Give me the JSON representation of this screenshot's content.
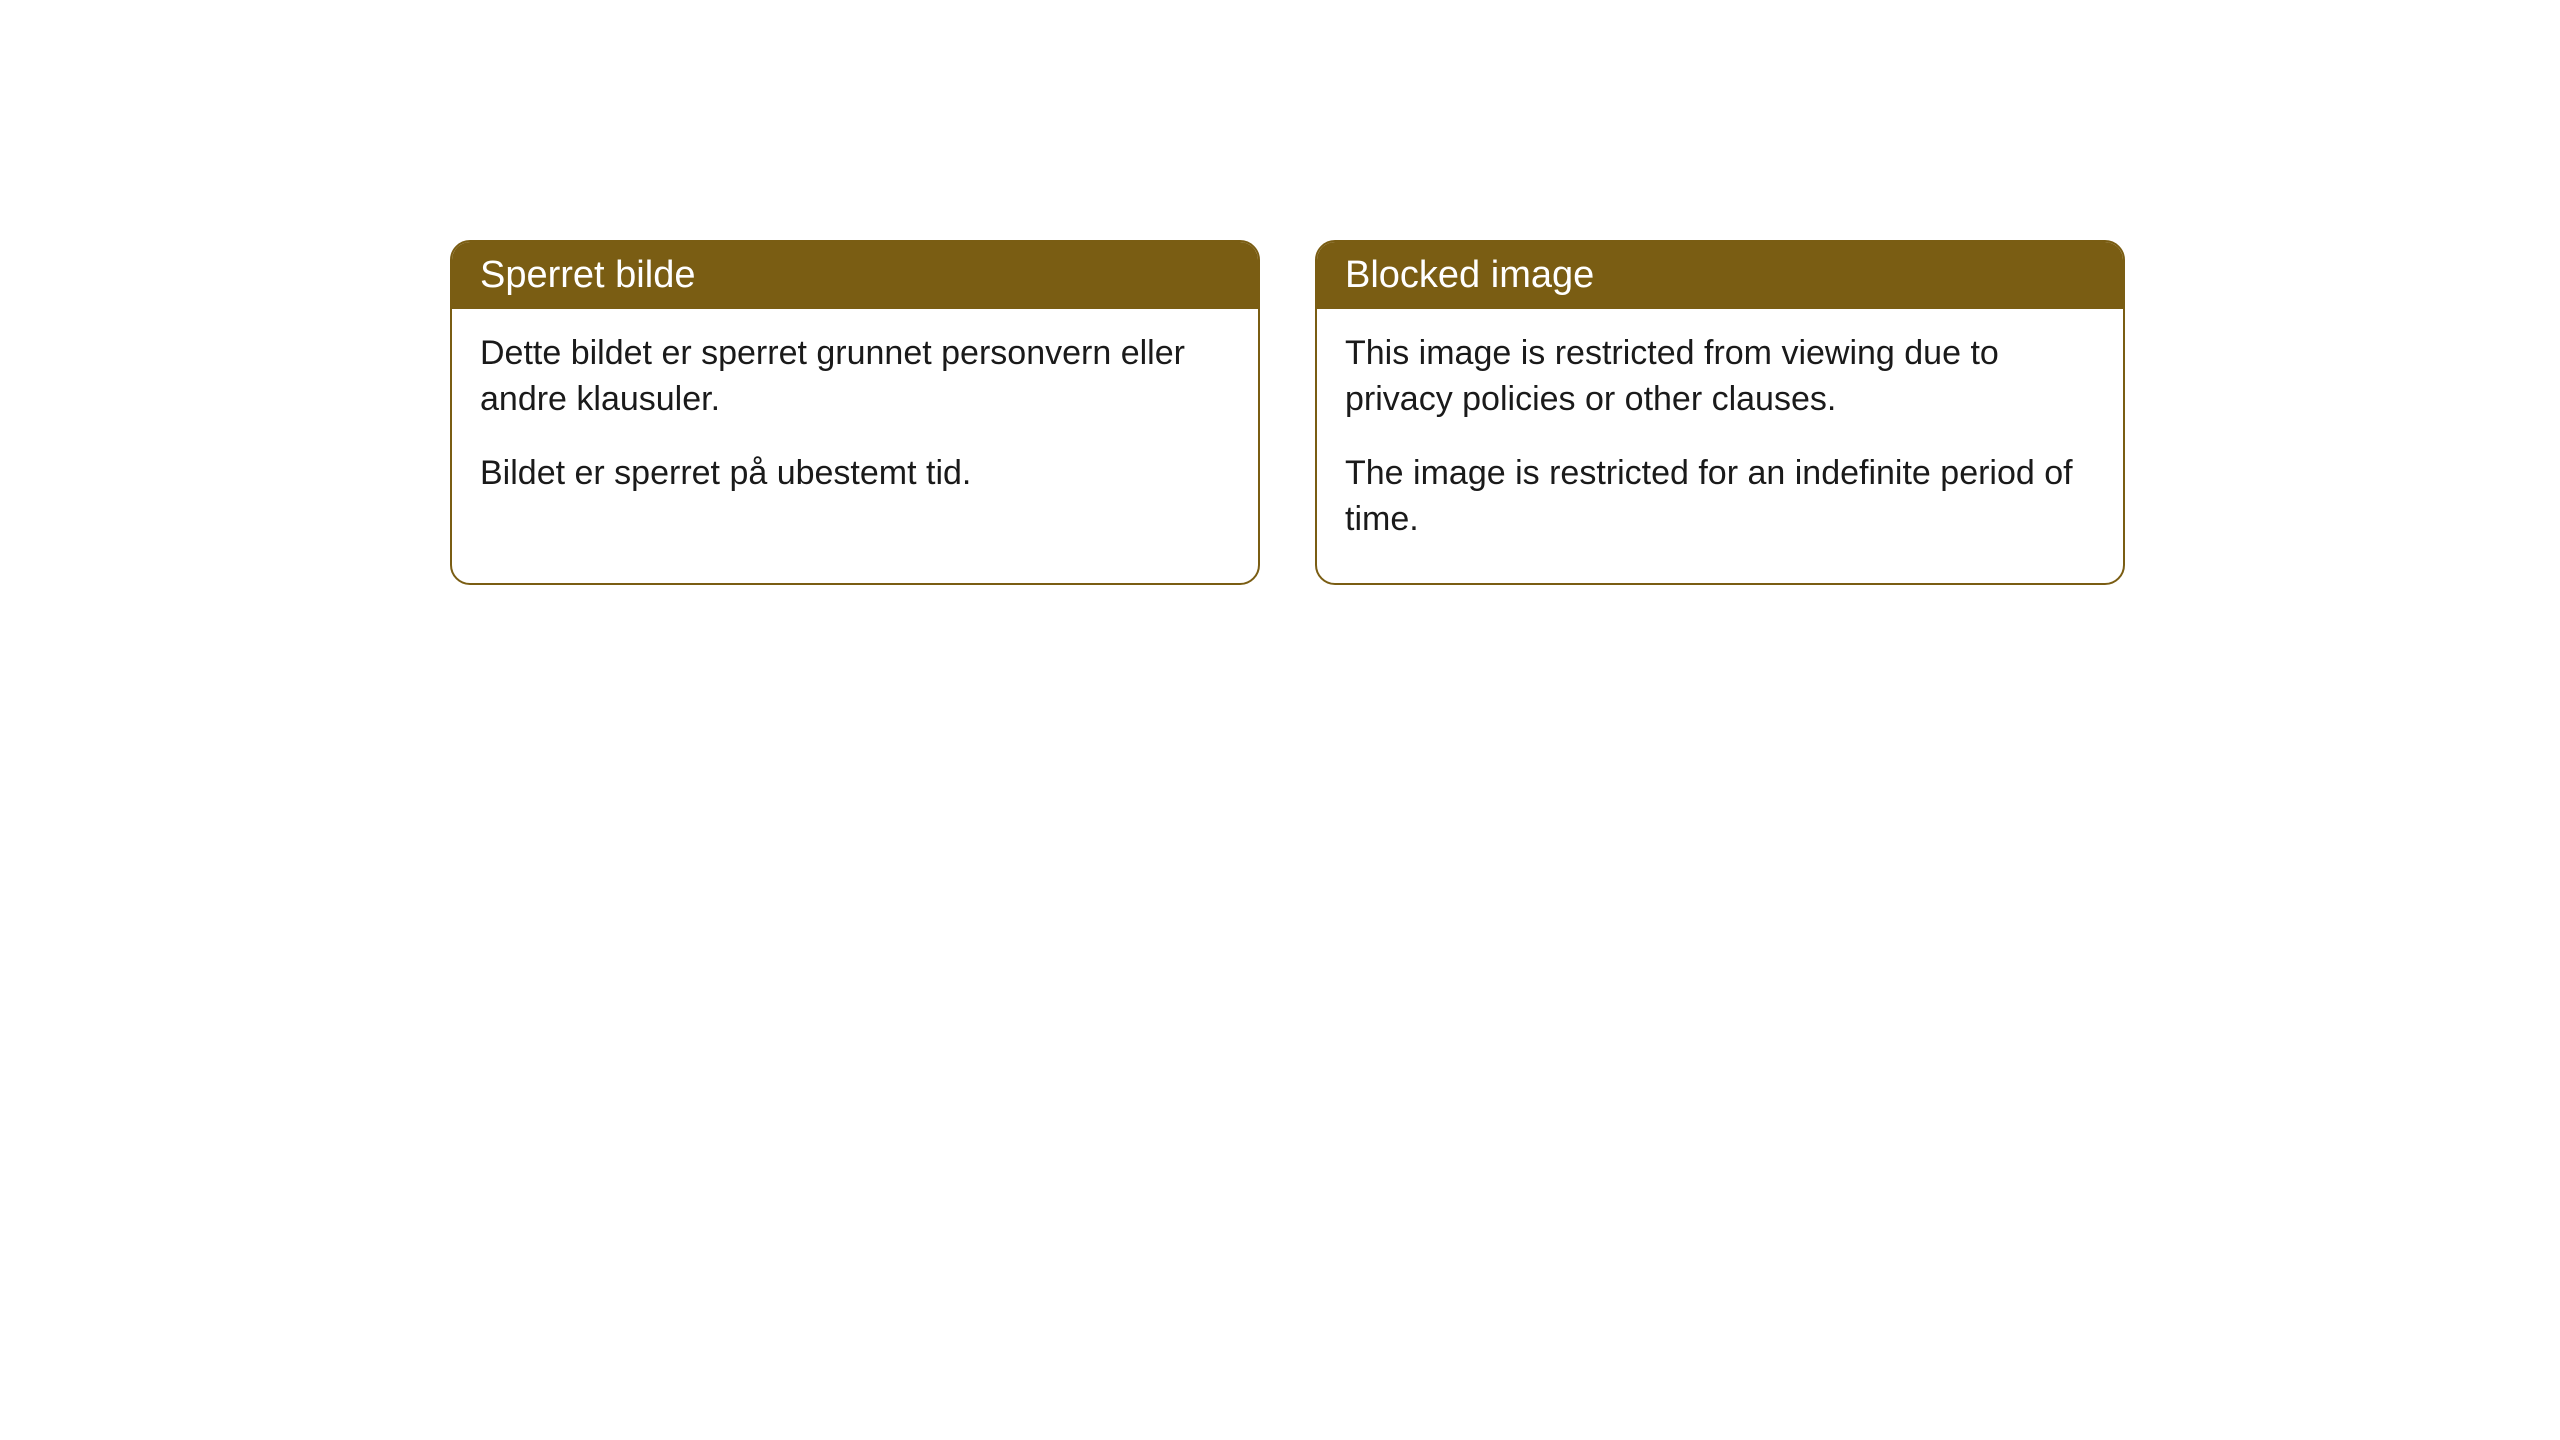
{
  "cards": [
    {
      "title": "Sperret bilde",
      "paragraph1": "Dette bildet er sperret grunnet personvern eller andre klausuler.",
      "paragraph2": "Bildet er sperret på ubestemt tid."
    },
    {
      "title": "Blocked image",
      "paragraph1": "This image is restricted from viewing due to privacy policies or other clauses.",
      "paragraph2": "The image is restricted for an indefinite period of time."
    }
  ],
  "styling": {
    "header_bg_color": "#7a5d13",
    "header_text_color": "#ffffff",
    "border_color": "#7a5d13",
    "body_text_color": "#1a1a1a",
    "background_color": "#ffffff",
    "border_radius": 20,
    "header_fontsize": 38,
    "body_fontsize": 34
  }
}
